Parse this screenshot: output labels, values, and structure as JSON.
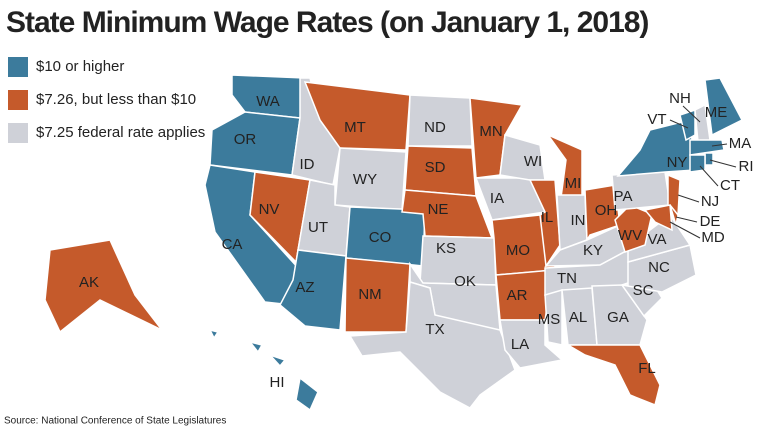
{
  "title": "State Minimum Wage Rates (on January 1, 2018)",
  "legend": [
    {
      "label": "$10 or higher",
      "color": "#3c7b9c"
    },
    {
      "label": "$7.26, but less than $10",
      "color": "#c55a2b"
    },
    {
      "label": "$7.25 federal rate applies",
      "color": "#cfd1d8"
    }
  ],
  "states": [
    {
      "label": "WA",
      "category": 0
    },
    {
      "label": "OR",
      "category": 0
    },
    {
      "label": "CA",
      "category": 0
    },
    {
      "label": "NV",
      "category": 1
    },
    {
      "label": "ID",
      "category": 2
    },
    {
      "label": "MT",
      "category": 1
    },
    {
      "label": "WY",
      "category": 2
    },
    {
      "label": "UT",
      "category": 2
    },
    {
      "label": "CO",
      "category": 0
    },
    {
      "label": "AZ",
      "category": 0
    },
    {
      "label": "NM",
      "category": 1
    },
    {
      "label": "ND",
      "category": 2
    },
    {
      "label": "SD",
      "category": 1
    },
    {
      "label": "NE",
      "category": 1
    },
    {
      "label": "KS",
      "category": 2
    },
    {
      "label": "OK",
      "category": 2
    },
    {
      "label": "TX",
      "category": 2
    },
    {
      "label": "MN",
      "category": 1
    },
    {
      "label": "IA",
      "category": 2
    },
    {
      "label": "MO",
      "category": 1
    },
    {
      "label": "AR",
      "category": 1
    },
    {
      "label": "LA",
      "category": 2
    },
    {
      "label": "WI",
      "category": 2
    },
    {
      "label": "IL",
      "category": 1
    },
    {
      "label": "MI",
      "category": 1
    },
    {
      "label": "IN",
      "category": 2
    },
    {
      "label": "OH",
      "category": 1
    },
    {
      "label": "KY",
      "category": 2
    },
    {
      "label": "TN",
      "category": 2
    },
    {
      "label": "MS",
      "category": 2
    },
    {
      "label": "AL",
      "category": 2
    },
    {
      "label": "GA",
      "category": 2
    },
    {
      "label": "FL",
      "category": 1
    },
    {
      "label": "SC",
      "category": 2
    },
    {
      "label": "NC",
      "category": 2
    },
    {
      "label": "VA",
      "category": 2
    },
    {
      "label": "WV",
      "category": 1
    },
    {
      "label": "PA",
      "category": 2
    },
    {
      "label": "NY",
      "category": 0
    },
    {
      "label": "NJ",
      "category": 1
    },
    {
      "label": "DE",
      "category": 1
    },
    {
      "label": "MD",
      "category": 1
    },
    {
      "label": "VT",
      "category": 0
    },
    {
      "label": "NH",
      "category": 2
    },
    {
      "label": "ME",
      "category": 0
    },
    {
      "label": "MA",
      "category": 0
    },
    {
      "label": "RI",
      "category": 0
    },
    {
      "label": "CT",
      "category": 0
    },
    {
      "label": "AK",
      "category": 1
    },
    {
      "label": "HI",
      "category": 0
    }
  ],
  "source": "Source: National Conference of State Legislatures"
}
